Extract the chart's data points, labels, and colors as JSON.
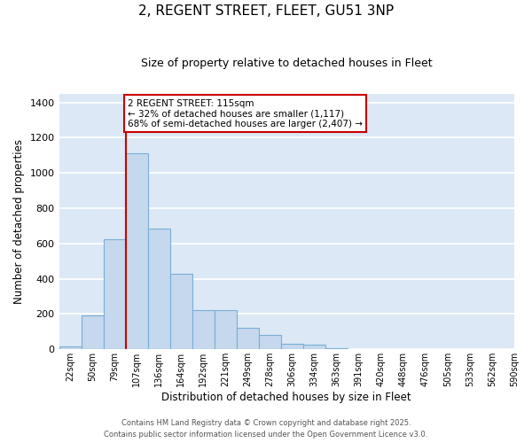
{
  "title_line1": "2, REGENT STREET, FLEET, GU51 3NP",
  "title_line2": "Size of property relative to detached houses in Fleet",
  "xlabel": "Distribution of detached houses by size in Fleet",
  "ylabel": "Number of detached properties",
  "bar_values": [
    15,
    190,
    625,
    1110,
    685,
    430,
    220,
    220,
    120,
    80,
    30,
    25,
    5,
    3,
    2,
    1,
    0,
    0,
    0,
    0
  ],
  "bin_labels": [
    "22sqm",
    "50sqm",
    "79sqm",
    "107sqm",
    "136sqm",
    "164sqm",
    "192sqm",
    "221sqm",
    "249sqm",
    "278sqm",
    "306sqm",
    "334sqm",
    "363sqm",
    "391sqm",
    "420sqm",
    "448sqm",
    "476sqm",
    "505sqm",
    "533sqm",
    "562sqm",
    "590sqm"
  ],
  "bar_color": "#c5d8ed",
  "bar_edge_color": "#7aafd4",
  "background_color": "#dce8f5",
  "grid_color": "#ffffff",
  "vline_x": 3,
  "vline_color": "#cc0000",
  "annotation_text": "2 REGENT STREET: 115sqm\n← 32% of detached houses are smaller (1,117)\n68% of semi-detached houses are larger (2,407) →",
  "annotation_box_color": "#ffffff",
  "annotation_box_edge": "#cc0000",
  "ylim": [
    0,
    1450
  ],
  "yticks": [
    0,
    200,
    400,
    600,
    800,
    1000,
    1200,
    1400
  ],
  "footnote1": "Contains HM Land Registry data © Crown copyright and database right 2025.",
  "footnote2": "Contains public sector information licensed under the Open Government Licence v3.0."
}
